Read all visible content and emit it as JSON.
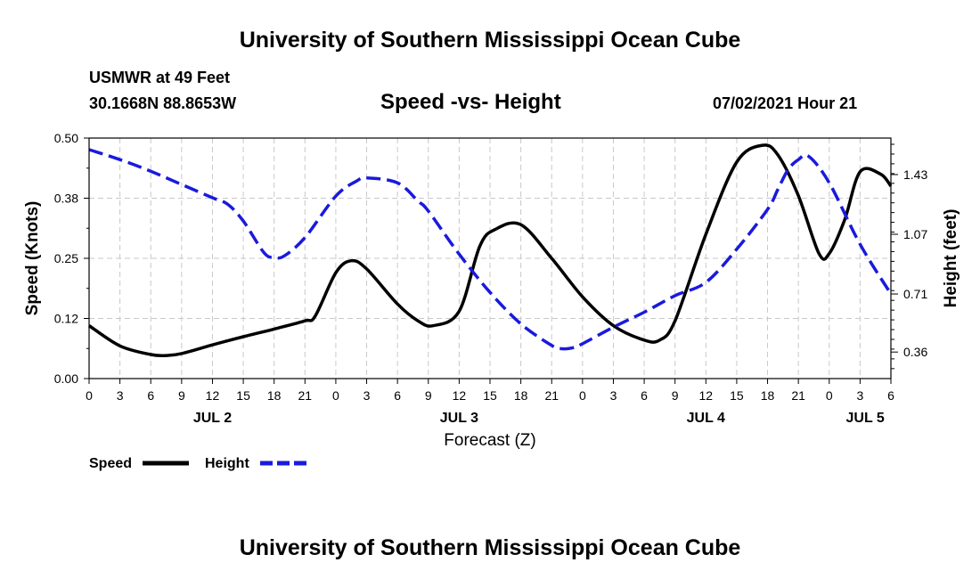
{
  "header": {
    "title": "University of Southern Mississippi Ocean Cube",
    "station": "USMWR at 49 Feet",
    "coordinates": "30.1668N  88.8653W",
    "subtitle": "Speed -vs- Height",
    "datetime": "07/02/2021 Hour 21"
  },
  "footer": {
    "title": "University of Southern Mississippi Ocean Cube"
  },
  "legend": {
    "speed_label": "Speed",
    "height_label": "Height"
  },
  "colors": {
    "speed": "#000000",
    "height": "#1a1adc",
    "grid": "#c8c8c8"
  },
  "chart_data": {
    "type": "line",
    "title": "Speed -vs- Height",
    "xlabel": "Forecast (Z)",
    "ylabel": "Speed (Knots)",
    "y2label": "Height (feet)",
    "xlim": [
      0,
      78
    ],
    "ylim": [
      0,
      0.5
    ],
    "y2lim": [
      0.2,
      1.65
    ],
    "x_ticks": [
      0,
      3,
      6,
      9,
      12,
      15,
      18,
      21,
      24,
      27,
      30,
      33,
      36,
      39,
      42,
      45,
      48,
      51,
      54,
      57,
      60,
      63,
      66,
      69,
      72,
      75,
      78
    ],
    "x_tick_labels": [
      "0",
      "3",
      "6",
      "9",
      "12",
      "15",
      "18",
      "21",
      "0",
      "3",
      "6",
      "9",
      "12",
      "15",
      "18",
      "21",
      "0",
      "3",
      "6",
      "9",
      "12",
      "15",
      "18",
      "21",
      "0",
      "3",
      "6"
    ],
    "day_labels": [
      {
        "label": "JUL 2",
        "x": 12
      },
      {
        "label": "JUL 3",
        "x": 36
      },
      {
        "label": "JUL 4",
        "x": 60
      },
      {
        "label": "JUL 5",
        "x": 75.5
      }
    ],
    "y_ticks": [
      0,
      0.125,
      0.25,
      0.375,
      0.5
    ],
    "y_tick_labels": [
      "0.00",
      "0.12",
      "0.25",
      "0.38",
      "0.50"
    ],
    "y2_ticks": [
      0.36,
      0.71,
      1.07,
      1.43
    ],
    "y2_tick_labels": [
      "0.36",
      "0.71",
      "1.07",
      "1.43"
    ],
    "grid": true,
    "series": [
      {
        "name": "Speed",
        "axis": "left",
        "style": "solid",
        "x": [
          0,
          3,
          6,
          7.5,
          9,
          12,
          15,
          18,
          21,
          22,
          24,
          25.5,
          27,
          30,
          32,
          33.5,
          36,
          38,
          39.5,
          42,
          45,
          48,
          51,
          54,
          55.5,
          57,
          60,
          63,
          65.5,
          67,
          69,
          71,
          72,
          73.5,
          75,
          77,
          78
        ],
        "y": [
          0.11,
          0.068,
          0.05,
          0.048,
          0.052,
          0.07,
          0.087,
          0.103,
          0.12,
          0.13,
          0.22,
          0.245,
          0.228,
          0.155,
          0.12,
          0.11,
          0.14,
          0.275,
          0.31,
          0.32,
          0.25,
          0.17,
          0.11,
          0.08,
          0.08,
          0.12,
          0.3,
          0.45,
          0.485,
          0.465,
          0.38,
          0.26,
          0.26,
          0.33,
          0.43,
          0.425,
          0.4
        ]
      },
      {
        "name": "Height",
        "axis": "right",
        "style": "dashed",
        "x": [
          0,
          3,
          6,
          9,
          12,
          13.5,
          15,
          17,
          18,
          19,
          21,
          24,
          26,
          27,
          30,
          32,
          33,
          36,
          39,
          42,
          45,
          46,
          47,
          48,
          51,
          54,
          57,
          60,
          63,
          66,
          67,
          68,
          69,
          70,
          72,
          75,
          78
        ],
        "y": [
          1.58,
          1.52,
          1.45,
          1.37,
          1.29,
          1.25,
          1.15,
          0.96,
          0.93,
          0.94,
          1.05,
          1.3,
          1.39,
          1.41,
          1.38,
          1.27,
          1.21,
          0.95,
          0.72,
          0.53,
          0.4,
          0.38,
          0.385,
          0.41,
          0.51,
          0.6,
          0.7,
          0.78,
          0.98,
          1.22,
          1.34,
          1.46,
          1.52,
          1.54,
          1.38,
          1.01,
          0.71
        ]
      }
    ]
  }
}
